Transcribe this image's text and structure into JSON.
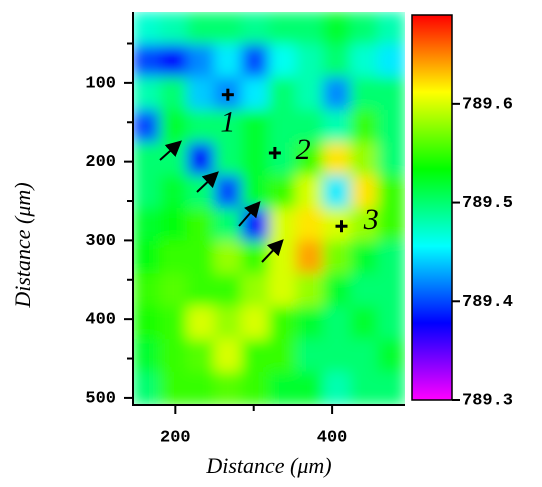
{
  "chart_data": {
    "type": "heatmap",
    "x_label": "Distance (μm)",
    "y_label": "Distance (μm)",
    "xlim": [
      146,
      493
    ],
    "ylim": [
      509,
      10
    ],
    "xticks": [
      200,
      400
    ],
    "xminor": [
      300
    ],
    "yticks": [
      100,
      200,
      300,
      400,
      500
    ],
    "yminor": [
      50,
      150,
      250,
      350,
      450
    ],
    "zlim": [
      789.3,
      789.69
    ],
    "zticks": [
      789.3,
      789.4,
      789.5,
      789.6
    ],
    "colormap": [
      "#ff00ff",
      "#0000ff",
      "#00ffff",
      "#00ff00",
      "#ffff00",
      "#ff0000"
    ],
    "z": [
      [
        789.47,
        789.48,
        789.5,
        789.5,
        789.49,
        789.5,
        789.5,
        789.52,
        789.5,
        789.48
      ],
      [
        789.4,
        789.38,
        789.42,
        789.45,
        789.4,
        789.46,
        789.48,
        789.5,
        789.47,
        789.45
      ],
      [
        789.48,
        789.5,
        789.44,
        789.42,
        789.45,
        789.5,
        789.48,
        789.42,
        789.5,
        789.5
      ],
      [
        789.4,
        789.52,
        789.5,
        789.5,
        789.52,
        789.5,
        789.5,
        789.48,
        789.55,
        789.5
      ],
      [
        789.5,
        789.5,
        789.38,
        789.5,
        789.52,
        789.5,
        789.55,
        789.62,
        789.58,
        789.5
      ],
      [
        789.5,
        789.52,
        789.5,
        789.4,
        789.52,
        789.55,
        789.6,
        789.45,
        789.62,
        789.55
      ],
      [
        789.52,
        789.53,
        789.55,
        789.5,
        789.38,
        789.6,
        789.62,
        789.6,
        789.58,
        789.55
      ],
      [
        789.53,
        789.55,
        789.55,
        789.58,
        789.55,
        789.6,
        789.64,
        789.57,
        789.52,
        789.5
      ],
      [
        789.55,
        789.56,
        789.55,
        789.55,
        789.58,
        789.6,
        789.58,
        789.52,
        789.5,
        789.5
      ],
      [
        789.54,
        789.55,
        789.6,
        789.58,
        789.6,
        789.55,
        789.52,
        789.5,
        789.52,
        789.5
      ],
      [
        789.52,
        789.55,
        789.56,
        789.6,
        789.55,
        789.55,
        789.5,
        789.5,
        789.5,
        789.52
      ],
      [
        789.5,
        789.55,
        789.55,
        789.56,
        789.55,
        789.52,
        789.52,
        789.48,
        789.5,
        789.5
      ]
    ],
    "annotations": [
      {
        "text": "1",
        "x": 267,
        "y": 115,
        "label_x": 267,
        "label_y": 153
      },
      {
        "text": "2",
        "x": 327,
        "y": 189,
        "label_x": 363,
        "label_y": 188
      },
      {
        "text": "3",
        "x": 412,
        "y": 282,
        "label_x": 450,
        "label_y": 277
      }
    ]
  }
}
